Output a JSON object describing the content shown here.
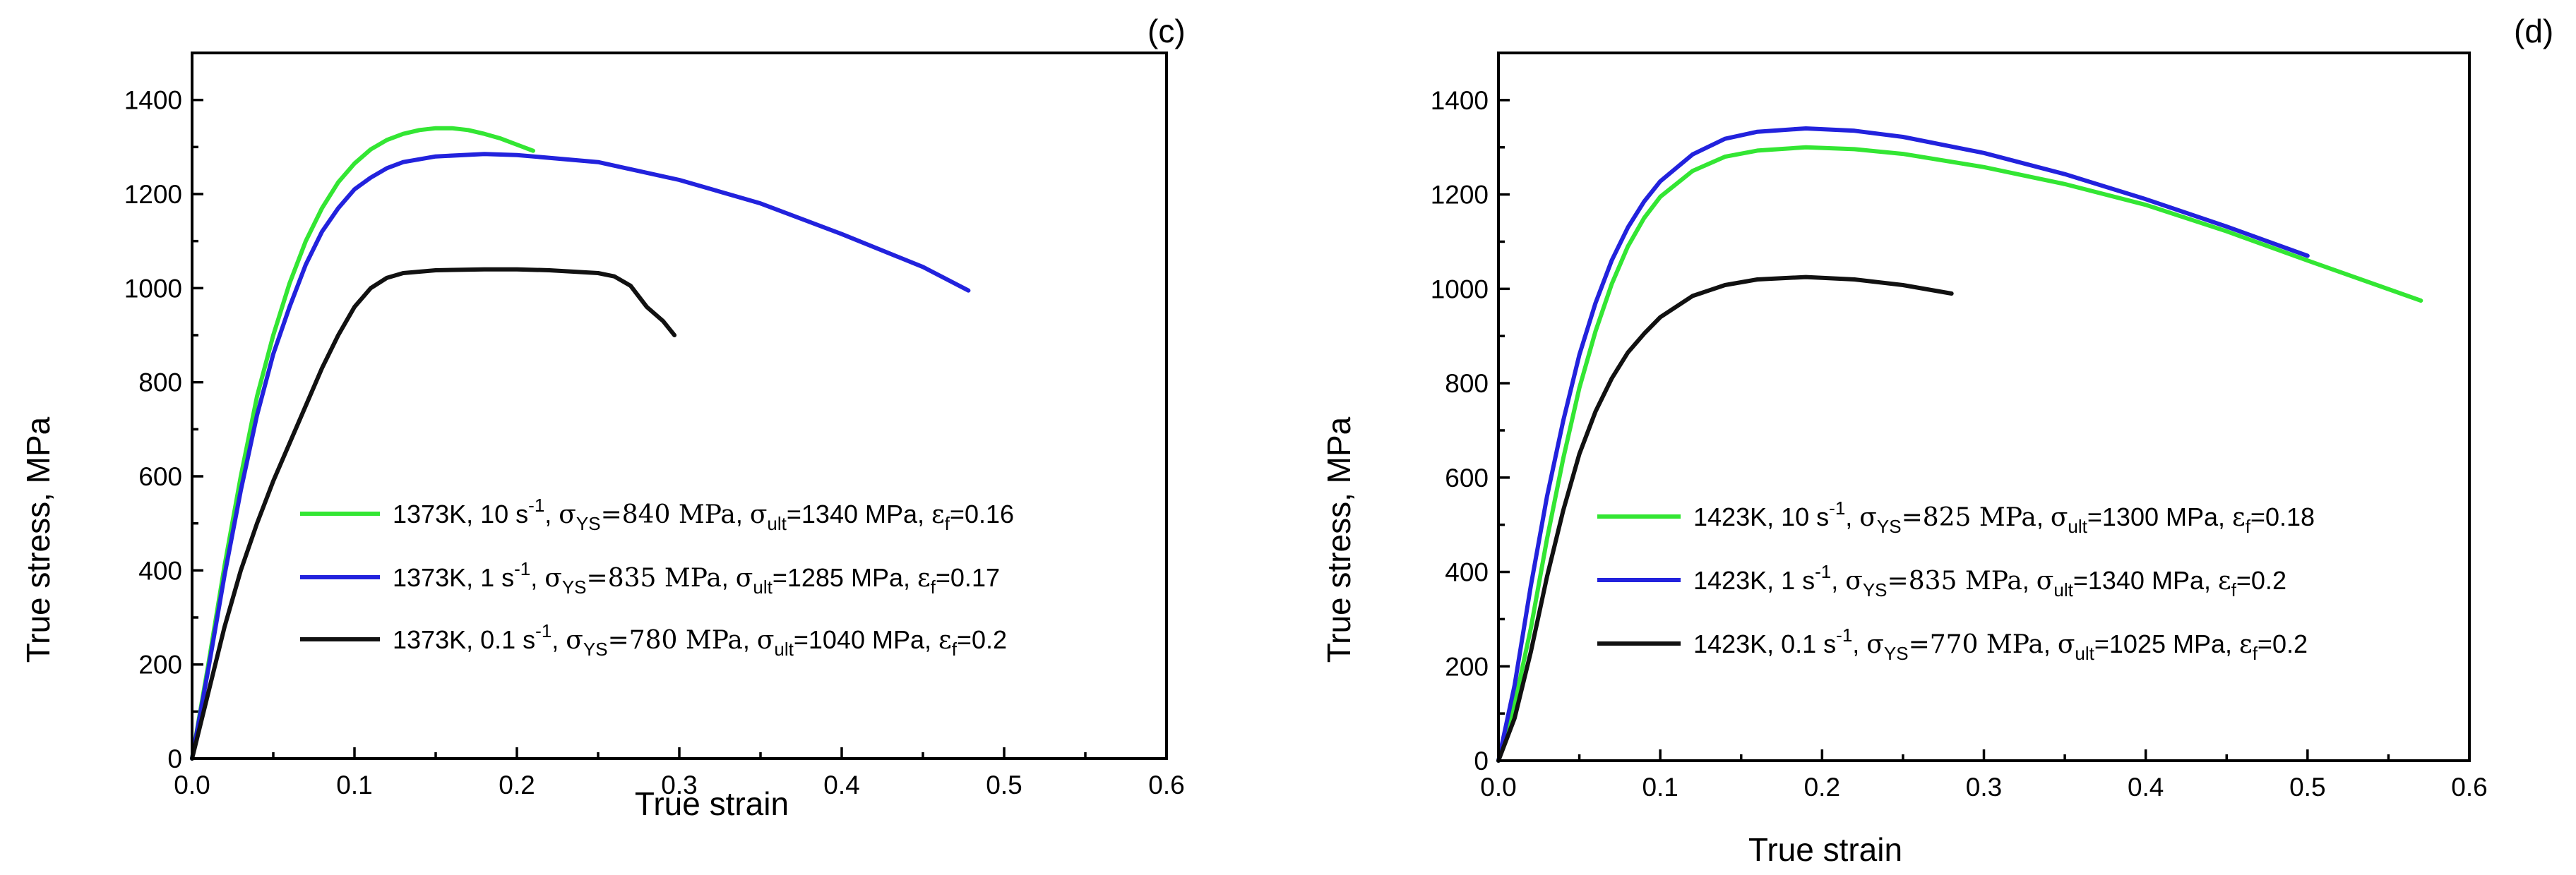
{
  "figure": {
    "colors": {
      "green": "#33e633",
      "blue": "#2222dd",
      "black": "#111111"
    }
  },
  "chart_data": [
    {
      "panel_label": "(c)",
      "type": "line",
      "xlabel": "True strain",
      "ylabel": "True stress, MPa",
      "xlim": [
        0,
        0.6
      ],
      "ylim": [
        0,
        1500
      ],
      "xticks": [
        0.0,
        0.1,
        0.2,
        0.3,
        0.4,
        0.5,
        0.6
      ],
      "xtick_labels": [
        "0.0",
        "0.1",
        "0.2",
        "0.3",
        "0.4",
        "0.5",
        "0.6"
      ],
      "yticks": [
        0,
        200,
        400,
        600,
        800,
        1000,
        1200,
        1400
      ],
      "ytick_labels": [
        "0",
        "200",
        "400",
        "600",
        "800",
        "1000",
        "1200",
        "1400"
      ],
      "legend_position": "center-right",
      "series": [
        {
          "name": "1373K, 10 s-1",
          "legend": {
            "temp": "1373K, 10 s",
            "exp": "-1",
            "sys": "=840 MPa",
            "sult": "=1340 MPa",
            "ef": "=0.16"
          },
          "color_key": "green",
          "x": [
            0,
            0.01,
            0.02,
            0.03,
            0.04,
            0.05,
            0.06,
            0.07,
            0.08,
            0.09,
            0.1,
            0.11,
            0.12,
            0.13,
            0.14,
            0.15,
            0.16,
            0.17,
            0.18,
            0.19,
            0.2,
            0.21
          ],
          "y": [
            0,
            200,
            410,
            600,
            770,
            900,
            1010,
            1100,
            1170,
            1225,
            1265,
            1295,
            1315,
            1328,
            1336,
            1340,
            1340,
            1336,
            1328,
            1318,
            1305,
            1292
          ]
        },
        {
          "name": "1373K, 1 s-1",
          "legend": {
            "temp": "1373K, 1 s",
            "exp": "-1",
            "sys": "=835 MPa",
            "sult": "=1285 MPa",
            "ef": "=0.17"
          },
          "color_key": "blue",
          "x": [
            0,
            0.01,
            0.02,
            0.03,
            0.04,
            0.05,
            0.06,
            0.07,
            0.08,
            0.09,
            0.1,
            0.11,
            0.12,
            0.13,
            0.15,
            0.18,
            0.2,
            0.25,
            0.3,
            0.35,
            0.4,
            0.45,
            0.478
          ],
          "y": [
            0,
            190,
            390,
            570,
            730,
            860,
            960,
            1050,
            1120,
            1170,
            1210,
            1235,
            1255,
            1268,
            1280,
            1285,
            1283,
            1268,
            1230,
            1180,
            1115,
            1045,
            995
          ]
        },
        {
          "name": "1373K, 0.1 s-1",
          "legend": {
            "temp": "1373K, 0.1 s",
            "exp": "-1",
            "sys": "=780 MPa",
            "sult": "=1040 MPa",
            "ef": "=0.2"
          },
          "color_key": "black",
          "x": [
            0,
            0.01,
            0.02,
            0.03,
            0.04,
            0.05,
            0.06,
            0.07,
            0.08,
            0.09,
            0.1,
            0.11,
            0.12,
            0.13,
            0.15,
            0.18,
            0.2,
            0.22,
            0.25,
            0.26,
            0.27,
            0.28,
            0.29,
            0.297
          ],
          "y": [
            0,
            140,
            280,
            400,
            500,
            590,
            670,
            750,
            830,
            900,
            960,
            1000,
            1022,
            1032,
            1038,
            1040,
            1040,
            1038,
            1032,
            1025,
            1005,
            960,
            930,
            900
          ]
        }
      ]
    },
    {
      "panel_label": "(d)",
      "type": "line",
      "xlabel": "True strain",
      "ylabel": "True stress, MPa",
      "xlim": [
        0,
        0.6
      ],
      "ylim": [
        0,
        1500
      ],
      "xticks": [
        0.0,
        0.1,
        0.2,
        0.3,
        0.4,
        0.5,
        0.6
      ],
      "xtick_labels": [
        "0.0",
        "0.1",
        "0.2",
        "0.3",
        "0.4",
        "0.5",
        "0.6"
      ],
      "yticks": [
        0,
        200,
        400,
        600,
        800,
        1000,
        1200,
        1400
      ],
      "ytick_labels": [
        "0",
        "200",
        "400",
        "600",
        "800",
        "1000",
        "1200",
        "1400"
      ],
      "legend_position": "center-right",
      "series": [
        {
          "name": "1423K, 10 s-1",
          "legend": {
            "temp": "1423K, 10 s",
            "exp": "-1",
            "sys": "=825 MPa",
            "sult": "=1300 MPa",
            "ef": "=0.18"
          },
          "color_key": "green",
          "x": [
            0,
            0.01,
            0.02,
            0.03,
            0.04,
            0.05,
            0.06,
            0.07,
            0.08,
            0.09,
            0.1,
            0.12,
            0.14,
            0.16,
            0.19,
            0.22,
            0.25,
            0.3,
            0.35,
            0.4,
            0.45,
            0.5,
            0.57
          ],
          "y": [
            0,
            120,
            280,
            470,
            640,
            790,
            910,
            1010,
            1090,
            1150,
            1195,
            1250,
            1280,
            1293,
            1300,
            1296,
            1286,
            1258,
            1222,
            1178,
            1122,
            1060,
            975
          ]
        },
        {
          "name": "1423K, 1 s-1",
          "legend": {
            "temp": "1423K, 1 s",
            "exp": "-1",
            "sys": "=835 MPa",
            "sult": "=1340 MPa",
            "ef": "=0.2"
          },
          "color_key": "blue",
          "x": [
            0,
            0.01,
            0.02,
            0.03,
            0.04,
            0.05,
            0.06,
            0.07,
            0.08,
            0.09,
            0.1,
            0.12,
            0.14,
            0.16,
            0.19,
            0.22,
            0.25,
            0.3,
            0.35,
            0.4,
            0.45,
            0.5
          ],
          "y": [
            0,
            160,
            370,
            560,
            720,
            860,
            970,
            1060,
            1130,
            1185,
            1228,
            1285,
            1318,
            1333,
            1340,
            1335,
            1322,
            1288,
            1243,
            1190,
            1132,
            1070
          ]
        },
        {
          "name": "1423K, 0.1 s-1",
          "legend": {
            "temp": "1423K, 0.1 s",
            "exp": "-1",
            "sys": "=770 MPa",
            "sult": "=1025 MPa",
            "ef": "=0.2"
          },
          "color_key": "black",
          "x": [
            0,
            0.01,
            0.02,
            0.03,
            0.04,
            0.05,
            0.06,
            0.07,
            0.08,
            0.09,
            0.1,
            0.12,
            0.14,
            0.16,
            0.19,
            0.22,
            0.25,
            0.28
          ],
          "y": [
            0,
            90,
            230,
            390,
            530,
            650,
            740,
            810,
            865,
            905,
            940,
            985,
            1008,
            1020,
            1025,
            1020,
            1008,
            990
          ]
        }
      ]
    }
  ]
}
